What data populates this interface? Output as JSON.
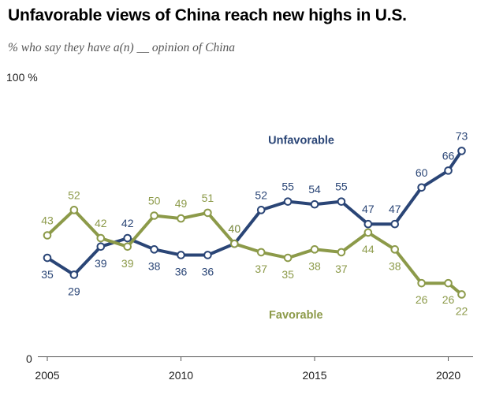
{
  "chart_data": {
    "type": "line",
    "title": "Unfavorable views of China reach new highs in U.S.",
    "subtitle": "% who say they have a(n) __ opinion of China",
    "y_top_label": "100 %",
    "y_bottom_label": "0",
    "ylim": [
      0,
      100
    ],
    "x_ticks": [
      "2005",
      "2010",
      "2015",
      "2020"
    ],
    "grid": false,
    "x": [
      2005,
      2006,
      2007,
      2008,
      2009,
      2010,
      2011,
      2012,
      2013,
      2014,
      2015,
      2016,
      2017,
      2018,
      2019,
      2020,
      2020.5
    ],
    "series": [
      {
        "name": "Unfavorable",
        "color": "#2a4576",
        "values": [
          35,
          29,
          39,
          42,
          38,
          36,
          36,
          40,
          52,
          55,
          54,
          55,
          47,
          47,
          60,
          66,
          73
        ]
      },
      {
        "name": "Favorable",
        "color": "#8c9a49",
        "values": [
          43,
          52,
          42,
          39,
          50,
          49,
          51,
          40,
          37,
          35,
          38,
          37,
          44,
          38,
          26,
          26,
          22
        ]
      }
    ]
  }
}
